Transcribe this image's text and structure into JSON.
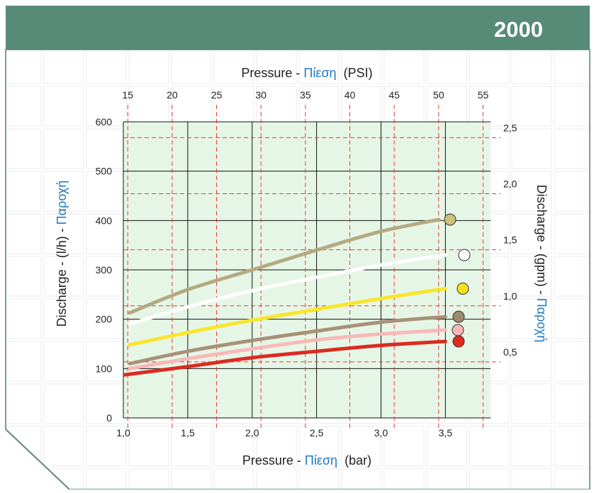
{
  "header": {
    "title": "2000",
    "bg_color": "#568b77",
    "title_color": "#ffffff"
  },
  "chart_data": {
    "type": "line",
    "x_axis_bottom": {
      "label_prefix": "Pressure - ",
      "label_greek": "Πίεση",
      "label_unit": "(bar)",
      "ticks": [
        "1,0",
        "1,5",
        "2,0",
        "2,5",
        "3,0",
        "3,5"
      ],
      "tick_values": [
        1.0,
        1.5,
        2.0,
        2.5,
        3.0,
        3.5
      ],
      "range": [
        1.0,
        3.85
      ]
    },
    "x_axis_top": {
      "label_prefix": "Pressure - ",
      "label_greek": "Πίεση",
      "label_unit": "(PSI)",
      "ticks": [
        "15",
        "20",
        "25",
        "30",
        "35",
        "40",
        "45",
        "50",
        "55"
      ],
      "tick_values": [
        15,
        20,
        25,
        30,
        35,
        40,
        45,
        50,
        55
      ]
    },
    "y_axis_left": {
      "label_prefix": "Discharge - (l/h) - ",
      "label_greek": "Παροχή",
      "ticks": [
        "0",
        "100",
        "200",
        "300",
        "400",
        "500",
        "600"
      ],
      "tick_values": [
        0,
        100,
        200,
        300,
        400,
        500,
        600
      ],
      "range": [
        0,
        600
      ]
    },
    "y_axis_right": {
      "label_prefix": "Discharge - (gpm) - ",
      "label_greek": "Παροχή",
      "ticks": [
        "0,5",
        "1,0",
        "1,5",
        "2,0",
        "2,5"
      ],
      "tick_values": [
        0.5,
        1.0,
        1.5,
        2.0,
        2.5
      ]
    },
    "series": [
      {
        "color": "#b3aa82",
        "marker_color": "#cdbf7c",
        "x": [
          1.05,
          1.5,
          2.0,
          2.5,
          3.0,
          3.45
        ],
        "y": [
          213,
          260,
          300,
          340,
          378,
          402
        ]
      },
      {
        "color": "#ffffff",
        "marker_color": "#ffffff",
        "x": [
          1.05,
          1.5,
          2.0,
          2.5,
          3.0,
          3.5
        ],
        "y": [
          190,
          225,
          258,
          285,
          310,
          330
        ]
      },
      {
        "color": "#fae52a",
        "marker_color": "#f6e21c",
        "x": [
          1.05,
          1.5,
          2.0,
          2.5,
          3.0,
          3.5
        ],
        "y": [
          148,
          173,
          198,
          220,
          242,
          262
        ]
      },
      {
        "color": "#a89179",
        "marker_color": "#a08a6c",
        "x": [
          1.05,
          1.5,
          2.0,
          2.5,
          3.0,
          3.5
        ],
        "y": [
          110,
          135,
          157,
          176,
          194,
          205
        ]
      },
      {
        "color": "#f8b8b8",
        "marker_color": "#f9b6b6",
        "x": [
          1.05,
          1.5,
          2.0,
          2.5,
          3.0,
          3.5
        ],
        "y": [
          100,
          120,
          140,
          158,
          170,
          178
        ]
      },
      {
        "color": "#dc2a21",
        "marker_color": "#e02a1e",
        "x": [
          1.0,
          1.5,
          2.0,
          2.5,
          3.0,
          3.5
        ],
        "y": [
          87,
          104,
          122,
          135,
          147,
          155
        ]
      }
    ],
    "plot_bg": "#e6f6e6",
    "grid": true,
    "accent_blue": "#1e78c2",
    "dashed_grid_color": "#e53935"
  }
}
